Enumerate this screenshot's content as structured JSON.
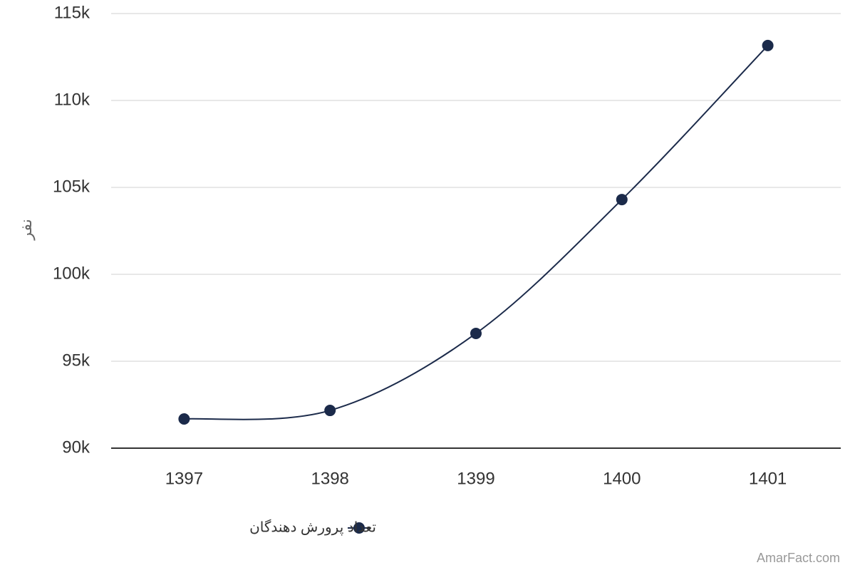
{
  "chart_data": {
    "type": "line",
    "y_label": "نفر",
    "categories": [
      "1397",
      "1398",
      "1399",
      "1400",
      "1401"
    ],
    "series": [
      {
        "name": "تعداد پرورش دهندگان",
        "color": "#1b2a4a",
        "values": [
          91680,
          92170,
          96600,
          104300,
          113160
        ]
      }
    ],
    "ylim": [
      90000,
      115000
    ],
    "yticks": [
      {
        "value": 90000,
        "label": "90k"
      },
      {
        "value": 95000,
        "label": "95k"
      },
      {
        "value": 100000,
        "label": "100k"
      },
      {
        "value": 105000,
        "label": "105k"
      },
      {
        "value": 110000,
        "label": "110k"
      },
      {
        "value": 115000,
        "label": "115k"
      }
    ],
    "grid": true,
    "credit": "AmarFact.com"
  }
}
